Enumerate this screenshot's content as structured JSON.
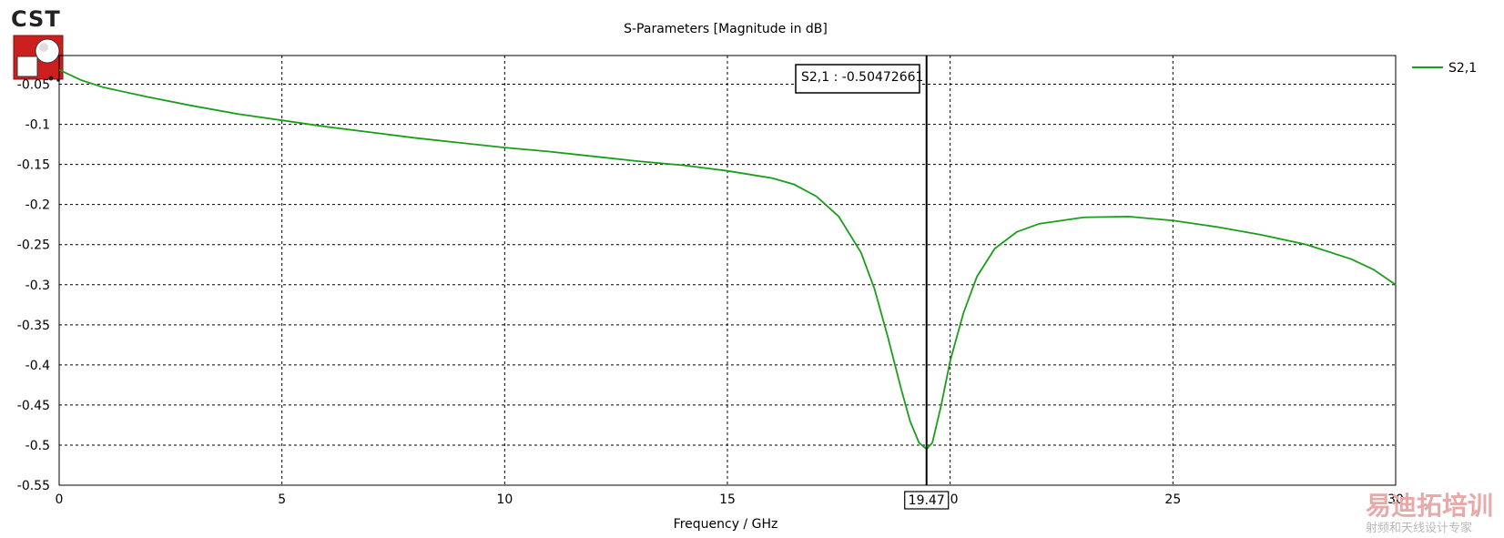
{
  "logo": {
    "text": "CST",
    "icon": "cst-logo-icon"
  },
  "watermark": {
    "main": "易迪拓培训",
    "sub": "射频和天线设计专家"
  },
  "marker": {
    "label": "S2,1 : -0.50472661",
    "x_readout": "19.47",
    "x": 19.47
  },
  "colors": {
    "series": "#1a9e1a",
    "grid": "#000000",
    "marker": "#000000",
    "logo_red": "#cc2020"
  },
  "chart_data": {
    "type": "line",
    "title": "S-Parameters [Magnitude in dB]",
    "xlabel": "Frequency / GHz",
    "ylabel": "",
    "xlim": [
      0,
      30
    ],
    "ylim": [
      -0.55,
      -0.0142
    ],
    "xticks": [
      "0",
      "5",
      "10",
      "15",
      "20",
      "25",
      "30"
    ],
    "yticks": [
      "-0.05",
      "-0.1",
      "-0.15",
      "-0.2",
      "-0.25",
      "-0.3",
      "-0.35",
      "-0.4",
      "-0.45",
      "-0.5",
      "-0.55"
    ],
    "grid": true,
    "legend_position": "top-right",
    "series": [
      {
        "name": "S2,1",
        "x": [
          0,
          0.5,
          1,
          2,
          3,
          4,
          5,
          6,
          7,
          8,
          9,
          10,
          11,
          12,
          13,
          14,
          15,
          16,
          16.5,
          17,
          17.5,
          18,
          18.3,
          18.6,
          18.9,
          19.1,
          19.3,
          19.47,
          19.6,
          19.8,
          20.0,
          20.3,
          20.6,
          21.0,
          21.5,
          22,
          23,
          24,
          25,
          26,
          27,
          28,
          29,
          29.5,
          30
        ],
        "values": [
          -0.032,
          -0.045,
          -0.054,
          -0.066,
          -0.077,
          -0.087,
          -0.095,
          -0.103,
          -0.11,
          -0.117,
          -0.123,
          -0.129,
          -0.134,
          -0.14,
          -0.146,
          -0.151,
          -0.158,
          -0.167,
          -0.175,
          -0.19,
          -0.215,
          -0.26,
          -0.305,
          -0.365,
          -0.43,
          -0.47,
          -0.497,
          -0.505,
          -0.497,
          -0.45,
          -0.395,
          -0.335,
          -0.29,
          -0.255,
          -0.234,
          -0.224,
          -0.216,
          -0.215,
          -0.22,
          -0.228,
          -0.238,
          -0.25,
          -0.268,
          -0.281,
          -0.3
        ]
      }
    ]
  }
}
